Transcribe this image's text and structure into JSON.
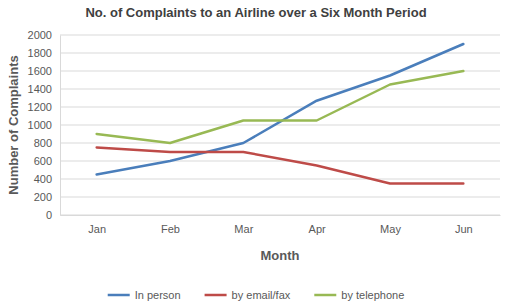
{
  "chart_data": {
    "type": "line",
    "title": "No. of Complaints to an Airline over a Six Month Period",
    "x_label": "Month",
    "y_label": "Number of Complaints",
    "categories": [
      "Jan",
      "Feb",
      "Mar",
      "Apr",
      "May",
      "Jun"
    ],
    "series": [
      {
        "name": "In person",
        "color": "#4a7ebb",
        "values": [
          450,
          600,
          800,
          1270,
          1550,
          1900
        ]
      },
      {
        "name": "by email/fax",
        "color": "#be4b48",
        "values": [
          750,
          700,
          700,
          550,
          350,
          350
        ]
      },
      {
        "name": "by telephone",
        "color": "#98b954",
        "values": [
          900,
          800,
          1050,
          1050,
          1450,
          1600
        ]
      }
    ],
    "ylim": [
      0,
      2000
    ],
    "yticks": [
      0,
      200,
      400,
      600,
      800,
      1000,
      1200,
      1400,
      1600,
      1800,
      2000
    ],
    "grid": true,
    "legend": "bottom"
  }
}
